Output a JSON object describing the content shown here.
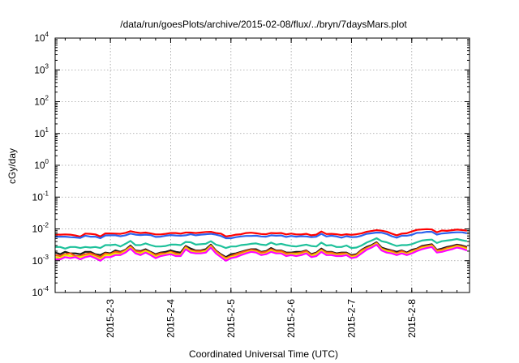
{
  "chart_data": {
    "type": "line",
    "title": "/data/run/goesPlots/archive/2015-02-08/flux/../bryn/7daysMars.plot",
    "xlabel": "Coordinated Universal Time (UTC)",
    "ylabel": "cGy/day",
    "y_scale": "log",
    "ylim": [
      0.0001,
      10000
    ],
    "xlim": [
      "2015-02-02 02:00",
      "2015-02-08 23:00"
    ],
    "y_ticks": [
      {
        "base": "10",
        "exp": "-4",
        "value": 0.0001
      },
      {
        "base": "10",
        "exp": "-3",
        "value": 0.001
      },
      {
        "base": "10",
        "exp": "-2",
        "value": 0.01
      },
      {
        "base": "10",
        "exp": "-1",
        "value": 0.1
      },
      {
        "base": "10",
        "exp": "0",
        "value": 1
      },
      {
        "base": "10",
        "exp": "1",
        "value": 10
      },
      {
        "base": "10",
        "exp": "2",
        "value": 100
      },
      {
        "base": "10",
        "exp": "3",
        "value": 1000
      },
      {
        "base": "10",
        "exp": "4",
        "value": 10000
      }
    ],
    "x_ticks": [
      "2015-2-3",
      "2015-2-4",
      "2015-2-5",
      "2015-2-6",
      "2015-2-7",
      "2015-2-8"
    ],
    "x_tick_times": [
      "2015-02-03 00:00",
      "2015-02-04 00:00",
      "2015-02-05 00:00",
      "2015-02-06 00:00",
      "2015-02-07 00:00",
      "2015-02-08 00:00"
    ],
    "grid": true,
    "legend": "none",
    "x": [
      "2015-02-02 02:00",
      "2015-02-02 04:00",
      "2015-02-02 06:00",
      "2015-02-02 08:00",
      "2015-02-02 10:00",
      "2015-02-02 12:00",
      "2015-02-02 14:00",
      "2015-02-02 16:00",
      "2015-02-02 18:00",
      "2015-02-02 20:00",
      "2015-02-02 22:00",
      "2015-02-03 00:00",
      "2015-02-03 02:00",
      "2015-02-03 04:00",
      "2015-02-03 06:00",
      "2015-02-03 08:00",
      "2015-02-03 10:00",
      "2015-02-03 12:00",
      "2015-02-03 14:00",
      "2015-02-03 16:00",
      "2015-02-03 18:00",
      "2015-02-03 20:00",
      "2015-02-03 22:00",
      "2015-02-04 00:00",
      "2015-02-04 02:00",
      "2015-02-04 04:00",
      "2015-02-04 06:00",
      "2015-02-04 08:00",
      "2015-02-04 10:00",
      "2015-02-04 12:00",
      "2015-02-04 14:00",
      "2015-02-04 16:00",
      "2015-02-04 18:00",
      "2015-02-04 20:00",
      "2015-02-04 22:00",
      "2015-02-05 00:00",
      "2015-02-05 02:00",
      "2015-02-05 04:00",
      "2015-02-05 06:00",
      "2015-02-05 08:00",
      "2015-02-05 10:00",
      "2015-02-05 12:00",
      "2015-02-05 14:00",
      "2015-02-05 16:00",
      "2015-02-05 18:00",
      "2015-02-05 20:00",
      "2015-02-05 22:00",
      "2015-02-06 00:00",
      "2015-02-06 02:00",
      "2015-02-06 04:00",
      "2015-02-06 06:00",
      "2015-02-06 08:00",
      "2015-02-06 10:00",
      "2015-02-06 12:00",
      "2015-02-06 14:00",
      "2015-02-06 16:00",
      "2015-02-06 18:00",
      "2015-02-06 20:00",
      "2015-02-06 22:00",
      "2015-02-07 00:00",
      "2015-02-07 02:00",
      "2015-02-07 04:00",
      "2015-02-07 06:00",
      "2015-02-07 08:00",
      "2015-02-07 10:00",
      "2015-02-07 12:00",
      "2015-02-07 14:00",
      "2015-02-07 16:00",
      "2015-02-07 18:00",
      "2015-02-07 20:00",
      "2015-02-07 22:00",
      "2015-02-08 00:00",
      "2015-02-08 02:00",
      "2015-02-08 04:00",
      "2015-02-08 06:00",
      "2015-02-08 08:00",
      "2015-02-08 10:00",
      "2015-02-08 12:00",
      "2015-02-08 14:00",
      "2015-02-08 16:00",
      "2015-02-08 18:00",
      "2015-02-08 20:00",
      "2015-02-08 22:00"
    ],
    "series": [
      {
        "color": "#ff0000",
        "values": [
          0.0067,
          0.0066,
          0.0067,
          0.0066,
          0.0062,
          0.0057,
          0.0071,
          0.007,
          0.0067,
          0.0058,
          0.0072,
          0.0072,
          0.0071,
          0.007,
          0.0075,
          0.0085,
          0.0078,
          0.0074,
          0.0077,
          0.0072,
          0.0067,
          0.0067,
          0.007,
          0.0074,
          0.0074,
          0.0071,
          0.0077,
          0.0077,
          0.0074,
          0.0077,
          0.008,
          0.0081,
          0.0074,
          0.0071,
          0.0058,
          0.0061,
          0.0066,
          0.0068,
          0.0074,
          0.0076,
          0.0073,
          0.0069,
          0.0068,
          0.0074,
          0.0073,
          0.0074,
          0.0067,
          0.0071,
          0.0067,
          0.0067,
          0.007,
          0.0063,
          0.0066,
          0.0083,
          0.0069,
          0.007,
          0.0068,
          0.0064,
          0.0068,
          0.0065,
          0.0068,
          0.0072,
          0.0081,
          0.0086,
          0.0091,
          0.0088,
          0.0082,
          0.0071,
          0.0063,
          0.0071,
          0.0073,
          0.0083,
          0.0093,
          0.0096,
          0.0098,
          0.0096,
          0.0078,
          0.0089,
          0.0087,
          0.0091,
          0.0095,
          0.0092,
          0.0088
        ]
      },
      {
        "color": "#2b62ee",
        "values": [
          0.0057,
          0.0057,
          0.0057,
          0.0055,
          0.0054,
          0.0052,
          0.0061,
          0.0057,
          0.0057,
          0.0051,
          0.0062,
          0.0063,
          0.0063,
          0.0059,
          0.0063,
          0.0071,
          0.0066,
          0.0064,
          0.0066,
          0.0064,
          0.0056,
          0.0057,
          0.0061,
          0.0064,
          0.0062,
          0.0061,
          0.0063,
          0.0068,
          0.0063,
          0.0066,
          0.0068,
          0.007,
          0.0066,
          0.006,
          0.0051,
          0.0051,
          0.0055,
          0.0058,
          0.006,
          0.006,
          0.0061,
          0.0058,
          0.0057,
          0.0063,
          0.0061,
          0.0062,
          0.0056,
          0.006,
          0.0057,
          0.0059,
          0.0058,
          0.0055,
          0.0057,
          0.007,
          0.0058,
          0.0061,
          0.0058,
          0.0053,
          0.0059,
          0.0055,
          0.0056,
          0.0061,
          0.007,
          0.0073,
          0.0077,
          0.0076,
          0.0069,
          0.0059,
          0.0053,
          0.0061,
          0.0061,
          0.0065,
          0.0075,
          0.0076,
          0.0081,
          0.0081,
          0.0066,
          0.0072,
          0.0074,
          0.0077,
          0.0078,
          0.0078,
          0.0073
        ]
      },
      {
        "color": "#1fc19b",
        "values": [
          0.0027,
          0.0027,
          0.0024,
          0.0027,
          0.0027,
          0.0025,
          0.0027,
          0.0026,
          0.0027,
          0.0025,
          0.0031,
          0.0031,
          0.0032,
          0.0028,
          0.0034,
          0.0042,
          0.0031,
          0.0031,
          0.0035,
          0.0031,
          0.0028,
          0.0028,
          0.0029,
          0.0032,
          0.0032,
          0.0031,
          0.0039,
          0.0038,
          0.0032,
          0.0033,
          0.0034,
          0.0041,
          0.0032,
          0.0029,
          0.0025,
          0.0028,
          0.0028,
          0.0031,
          0.0032,
          0.0034,
          0.0035,
          0.0032,
          0.0031,
          0.0037,
          0.0032,
          0.0034,
          0.0031,
          0.0029,
          0.0028,
          0.003,
          0.0032,
          0.0029,
          0.0028,
          0.0037,
          0.003,
          0.0031,
          0.0027,
          0.0027,
          0.003,
          0.0025,
          0.0026,
          0.003,
          0.0037,
          0.0043,
          0.0051,
          0.0041,
          0.0038,
          0.0033,
          0.0029,
          0.0031,
          0.0031,
          0.0033,
          0.0038,
          0.0043,
          0.0045,
          0.0046,
          0.0036,
          0.0041,
          0.0043,
          0.0045,
          0.0048,
          0.0044,
          0.0041
        ]
      },
      {
        "color": "#1a1a1a",
        "values": [
          0.0018,
          0.0016,
          0.0019,
          0.0017,
          0.0017,
          0.0016,
          0.0019,
          0.0019,
          0.0016,
          0.0015,
          0.0018,
          0.0017,
          0.0021,
          0.0019,
          0.0022,
          0.003,
          0.0021,
          0.002,
          0.0023,
          0.0019,
          0.0016,
          0.0018,
          0.0019,
          0.0021,
          0.0019,
          0.0018,
          0.0029,
          0.0024,
          0.0021,
          0.0021,
          0.0023,
          0.0032,
          0.0021,
          0.0016,
          0.0013,
          0.0016,
          0.0017,
          0.0019,
          0.0021,
          0.0023,
          0.0023,
          0.0019,
          0.002,
          0.0025,
          0.0021,
          0.0021,
          0.0018,
          0.0018,
          0.0019,
          0.0019,
          0.0021,
          0.0016,
          0.0018,
          0.0024,
          0.0019,
          0.0019,
          0.0017,
          0.0018,
          0.0018,
          0.0015,
          0.0016,
          0.0022,
          0.0027,
          0.0031,
          0.0038,
          0.0026,
          0.0023,
          0.0021,
          0.0019,
          0.0021,
          0.0018,
          0.0022,
          0.0024,
          0.0029,
          0.0031,
          0.0033,
          0.0022,
          0.0024,
          0.0027,
          0.0029,
          0.0032,
          0.003,
          0.0027
        ]
      },
      {
        "color": "#ff5511",
        "values": [
          0.0015,
          0.0014,
          0.0016,
          0.0017,
          0.0014,
          0.0014,
          0.0016,
          0.0017,
          0.0015,
          0.0013,
          0.0017,
          0.0016,
          0.0019,
          0.0018,
          0.0021,
          0.0028,
          0.002,
          0.0019,
          0.0021,
          0.0018,
          0.0015,
          0.0017,
          0.0017,
          0.0019,
          0.0017,
          0.0016,
          0.0027,
          0.0021,
          0.002,
          0.002,
          0.0021,
          0.003,
          0.002,
          0.0015,
          0.0012,
          0.0014,
          0.0016,
          0.0018,
          0.002,
          0.0022,
          0.0021,
          0.0018,
          0.0019,
          0.0023,
          0.002,
          0.002,
          0.0017,
          0.0017,
          0.0017,
          0.0018,
          0.002,
          0.0015,
          0.0017,
          0.0022,
          0.0018,
          0.0018,
          0.0016,
          0.0017,
          0.0017,
          0.0014,
          0.0015,
          0.0021,
          0.0025,
          0.0029,
          0.0036,
          0.0024,
          0.0021,
          0.002,
          0.0017,
          0.002,
          0.0017,
          0.002,
          0.0023,
          0.0027,
          0.0029,
          0.0031,
          0.0021,
          0.0022,
          0.0025,
          0.0027,
          0.003,
          0.0028,
          0.0025
        ]
      },
      {
        "color": "#ecec00",
        "values": [
          0.0013,
          0.0012,
          0.0015,
          0.0014,
          0.0013,
          0.0013,
          0.0014,
          0.0015,
          0.0013,
          0.0011,
          0.0015,
          0.0015,
          0.0017,
          0.0016,
          0.002,
          0.0026,
          0.0018,
          0.0017,
          0.002,
          0.0017,
          0.0013,
          0.0015,
          0.0016,
          0.0018,
          0.0015,
          0.0015,
          0.0025,
          0.002,
          0.0018,
          0.0018,
          0.002,
          0.0028,
          0.0018,
          0.0014,
          0.0011,
          0.0013,
          0.0014,
          0.0016,
          0.0018,
          0.002,
          0.0019,
          0.0016,
          0.0017,
          0.0021,
          0.0018,
          0.0018,
          0.0015,
          0.0016,
          0.0016,
          0.0016,
          0.0018,
          0.0014,
          0.0016,
          0.0021,
          0.0016,
          0.0016,
          0.0015,
          0.0015,
          0.0016,
          0.0013,
          0.0014,
          0.0019,
          0.0023,
          0.0028,
          0.0034,
          0.0023,
          0.002,
          0.0018,
          0.0016,
          0.0018,
          0.0016,
          0.0019,
          0.0021,
          0.0025,
          0.0027,
          0.0029,
          0.0019,
          0.002,
          0.0023,
          0.0025,
          0.0028,
          0.0026,
          0.0023
        ]
      },
      {
        "color": "#ff00ff",
        "values": [
          0.0011,
          0.0011,
          0.0013,
          0.0012,
          0.0013,
          0.0011,
          0.0013,
          0.0014,
          0.0012,
          0.001,
          0.0013,
          0.0013,
          0.0015,
          0.0015,
          0.0018,
          0.0024,
          0.0017,
          0.0015,
          0.0018,
          0.0015,
          0.0012,
          0.0014,
          0.0015,
          0.0016,
          0.0014,
          0.0014,
          0.0023,
          0.0018,
          0.0017,
          0.0017,
          0.0018,
          0.0026,
          0.0017,
          0.0013,
          0.001,
          0.0012,
          0.0013,
          0.0015,
          0.0017,
          0.0019,
          0.0018,
          0.0015,
          0.0016,
          0.0019,
          0.0017,
          0.0017,
          0.0014,
          0.0015,
          0.0014,
          0.0015,
          0.0017,
          0.0013,
          0.0014,
          0.0019,
          0.0015,
          0.0015,
          0.0014,
          0.0014,
          0.0015,
          0.0012,
          0.0013,
          0.0017,
          0.0022,
          0.0026,
          0.0032,
          0.0021,
          0.0018,
          0.0017,
          0.0015,
          0.0017,
          0.0015,
          0.0017,
          0.002,
          0.0023,
          0.0025,
          0.0027,
          0.0018,
          0.0019,
          0.0021,
          0.0023,
          0.0026,
          0.0024,
          0.0021
        ]
      }
    ]
  }
}
